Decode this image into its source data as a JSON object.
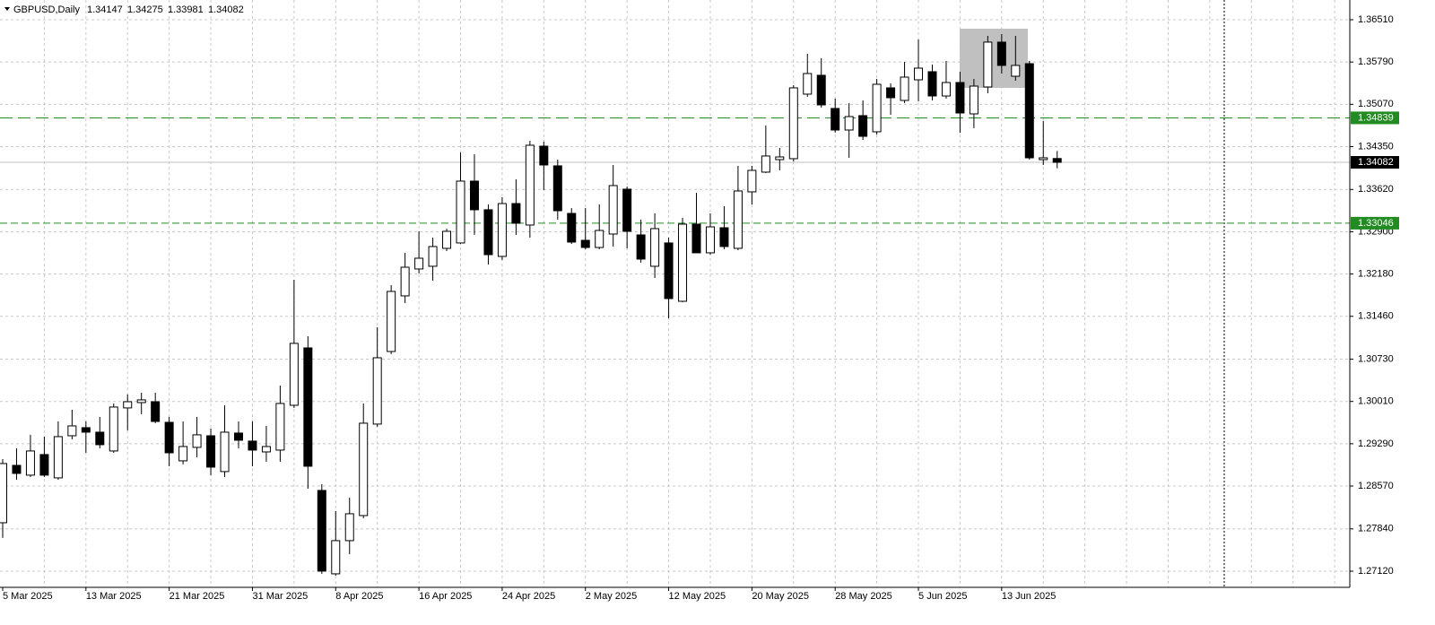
{
  "chart_data": {
    "type": "candlestick",
    "symbol": "GBPUSD,Daily",
    "categories": [
      "5 Mar 2025",
      null,
      null,
      null,
      null,
      null,
      "13 Mar 2025",
      null,
      null,
      null,
      null,
      null,
      "21 Mar 2025",
      null,
      null,
      null,
      null,
      null,
      "31 Mar 2025",
      null,
      null,
      null,
      null,
      null,
      "8 Apr 2025",
      null,
      null,
      null,
      null,
      null,
      "16 Apr 2025",
      null,
      null,
      null,
      null,
      null,
      "24 Apr 2025",
      null,
      null,
      null,
      null,
      null,
      "2 May 2025",
      null,
      null,
      null,
      null,
      null,
      "12 May 2025",
      null,
      null,
      null,
      null,
      null,
      "20 May 2025",
      null,
      null,
      null,
      null,
      null,
      "28 May 2025",
      null,
      null,
      null,
      null,
      null,
      "5 Jun 2025",
      null,
      null,
      null,
      null,
      null,
      "13 Jun 2025",
      null,
      null,
      null,
      null
    ],
    "open": [
      1.27945,
      1.28922,
      1.28755,
      1.29106,
      1.28709,
      1.29426,
      1.29564,
      1.29487,
      1.29167,
      1.299,
      1.29991,
      1.30006,
      1.29655,
      1.28999,
      1.29228,
      1.29426,
      1.28816,
      1.29472,
      1.29335,
      1.29151,
      1.29182,
      1.29945,
      1.30922,
      1.28495,
      1.27075,
      1.2764,
      1.28067,
      1.29625,
      1.30861,
      1.31808,
      1.32266,
      1.32312,
      1.32617,
      1.32709,
      1.33762,
      1.33274,
      1.3248,
      1.3338,
      1.33014,
      1.34357,
      1.34022,
      1.33212,
      1.32754,
      1.32632,
      1.32861,
      1.33625,
      1.32846,
      1.32312,
      1.32709,
      1.31716,
      1.33029,
      1.32541,
      1.32968,
      1.32617,
      1.33579,
      1.33915,
      1.34128,
      1.34144,
      1.35243,
      1.35564,
      1.34999,
      1.34632,
      1.34877,
      1.34602,
      1.3535,
      1.35136,
      1.35487,
      1.35625,
      1.35212,
      1.35441,
      1.34907,
      1.35365,
      1.36129,
      1.35548,
      1.35762,
      1.34128,
      1.34147
    ],
    "high": [
      1.29029,
      1.29213,
      1.29442,
      1.29411,
      1.2967,
      1.29869,
      1.2967,
      1.29747,
      1.29976,
      1.30129,
      1.30159,
      1.30159,
      1.29747,
      1.2967,
      1.29747,
      1.29548,
      1.29945,
      1.2967,
      1.2967,
      1.29594,
      1.30281,
      1.32083,
      1.31121,
      1.28602,
      1.28144,
      1.28373,
      1.29976,
      1.31274,
      1.31991,
      1.32541,
      1.32907,
      1.328,
      1.32953,
      1.34251,
      1.3422,
      1.33365,
      1.33487,
      1.33793,
      1.34449,
      1.34434,
      1.34128,
      1.33304,
      1.33304,
      1.33365,
      1.34037,
      1.3367,
      1.33106,
      1.33212,
      1.328,
      1.33136,
      1.33564,
      1.33212,
      1.33335,
      1.34022,
      1.34022,
      1.34709,
      1.34327,
      1.35396,
      1.3593,
      1.35854,
      1.35167,
      1.3509,
      1.35136,
      1.35502,
      1.35426,
      1.35793,
      1.36174,
      1.35747,
      1.35808,
      1.35625,
      1.35502,
      1.36235,
      1.36266,
      1.36235,
      1.35808,
      1.34785,
      1.34275
    ],
    "low": [
      1.27686,
      1.28678,
      1.28724,
      1.28724,
      1.28678,
      1.29365,
      1.29136,
      1.29213,
      1.29136,
      1.29518,
      1.29793,
      1.2964,
      1.28907,
      1.28938,
      1.2906,
      1.28755,
      1.28724,
      1.29213,
      1.28907,
      1.28984,
      1.28984,
      1.299,
      1.28525,
      1.27075,
      1.27045,
      1.27411,
      1.28022,
      1.29579,
      1.30816,
      1.31686,
      1.3219,
      1.32067,
      1.32571,
      1.32693,
      1.32846,
      1.32342,
      1.32419,
      1.32846,
      1.328,
      1.33609,
      1.33106,
      1.32693,
      1.32602,
      1.32602,
      1.32648,
      1.32617,
      1.32373,
      1.32113,
      1.31426,
      1.31701,
      1.32541,
      1.3251,
      1.32602,
      1.32587,
      1.33365,
      1.33899,
      1.33945,
      1.34098,
      1.35197,
      1.35014,
      1.34587,
      1.34159,
      1.34464,
      1.34556,
      1.34892,
      1.3509,
      1.35121,
      1.35136,
      1.35167,
      1.34587,
      1.34663,
      1.35258,
      1.35594,
      1.35472,
      1.34128,
      1.34037,
      1.33981
    ],
    "close": [
      1.28953,
      1.28785,
      1.29167,
      1.28755,
      1.29411,
      1.29594,
      1.29487,
      1.29274,
      1.29915,
      1.30006,
      1.30037,
      1.2967,
      1.29136,
      1.29243,
      1.29442,
      1.28892,
      1.29487,
      1.2935,
      1.29182,
      1.29243,
      1.29976,
      1.30999,
      1.28907,
      1.27121,
      1.2764,
      1.28098,
      1.2964,
      1.30754,
      1.31884,
      1.32296,
      1.32449,
      1.32648,
      1.32907,
      1.33762,
      1.33274,
      1.3251,
      1.3338,
      1.33045,
      1.34373,
      1.34037,
      1.33258,
      1.32724,
      1.32632,
      1.32922,
      1.33686,
      1.32907,
      1.32434,
      1.32953,
      1.31762,
      1.33029,
      1.32541,
      1.32983,
      1.32648,
      1.33594,
      1.33945,
      1.3419,
      1.34174,
      1.3535,
      1.35594,
      1.3506,
      1.34632,
      1.34861,
      1.34525,
      1.35411,
      1.35182,
      1.35533,
      1.35686,
      1.35212,
      1.35441,
      1.34922,
      1.3538,
      1.36129,
      1.35732,
      1.35732,
      1.34159,
      1.34159,
      1.34082
    ],
    "bull_color": "#ffffff",
    "bear_color": "#000000",
    "levels": [
      {
        "value": 1.34839,
        "color": "#228b22"
      },
      {
        "value": 1.33046,
        "color": "#228b22"
      }
    ],
    "ylim": [
      1.26845,
      1.36846
    ],
    "yticks": [
      {
        "value": 1.3651,
        "label": "1.36510"
      },
      {
        "value": 1.3579,
        "label": "1.35790"
      },
      {
        "value": 1.3507,
        "label": "1.35070"
      },
      {
        "value": 1.3435,
        "label": "1.34350"
      },
      {
        "value": 1.3362,
        "label": "1.33620"
      },
      {
        "value": 1.329,
        "label": "1.32900"
      },
      {
        "value": 1.3218,
        "label": "1.32180"
      },
      {
        "value": 1.3146,
        "label": "1.31460"
      },
      {
        "value": 1.3073,
        "label": "1.30730"
      },
      {
        "value": 1.3001,
        "label": "1.30010"
      },
      {
        "value": 1.2929,
        "label": "1.29290"
      },
      {
        "value": 1.2857,
        "label": "1.28570"
      },
      {
        "value": 1.2784,
        "label": "1.27840"
      },
      {
        "value": 1.2712,
        "label": "1.27120"
      }
    ],
    "grid": true
  }
}
